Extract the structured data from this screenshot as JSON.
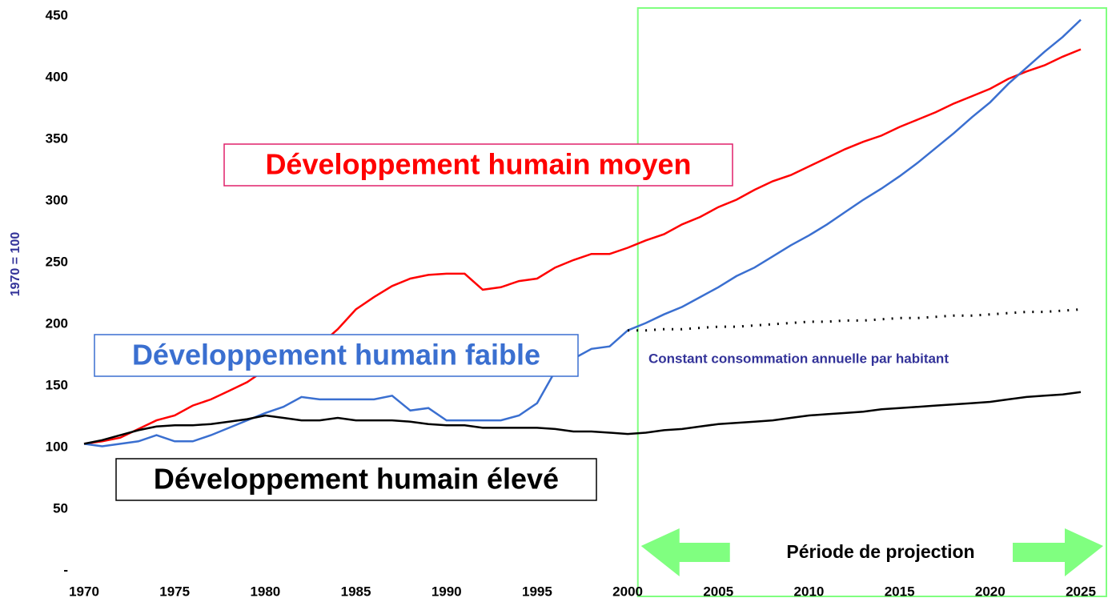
{
  "chart_data": {
    "type": "line",
    "y_label": "1970 = 100",
    "x": [
      1970,
      1971,
      1972,
      1973,
      1974,
      1975,
      1976,
      1977,
      1978,
      1979,
      1980,
      1981,
      1982,
      1983,
      1984,
      1985,
      1986,
      1987,
      1988,
      1989,
      1990,
      1991,
      1992,
      1993,
      1994,
      1995,
      1996,
      1997,
      1998,
      1999,
      2000,
      2001,
      2002,
      2003,
      2004,
      2005,
      2006,
      2007,
      2008,
      2009,
      2010,
      2011,
      2012,
      2013,
      2014,
      2015,
      2016,
      2017,
      2018,
      2019,
      2020,
      2021,
      2022,
      2023,
      2024,
      2025
    ],
    "series": [
      {
        "name": "Développement humain moyen",
        "color": "#ff0000",
        "style": "solid",
        "values": [
          103,
          105,
          108,
          115,
          122,
          126,
          134,
          139,
          146,
          153,
          163,
          172,
          181,
          183,
          196,
          212,
          222,
          231,
          237,
          240,
          241,
          241,
          228,
          230,
          235,
          237,
          246,
          252,
          257,
          257,
          262,
          268,
          273,
          281,
          287,
          295,
          301,
          309,
          316,
          321,
          328,
          335,
          342,
          348,
          353,
          360,
          366,
          372,
          379,
          385,
          391,
          399,
          405,
          410,
          417,
          423
        ]
      },
      {
        "name": "Développement humain faible",
        "color": "#3a6fd0",
        "style": "solid",
        "values": [
          103,
          101,
          103,
          105,
          110,
          105,
          105,
          110,
          116,
          122,
          128,
          133,
          141,
          139,
          139,
          139,
          139,
          142,
          130,
          132,
          122,
          122,
          122,
          122,
          126,
          136,
          162,
          172,
          180,
          182,
          195,
          201,
          208,
          214,
          222,
          230,
          239,
          246,
          255,
          264,
          272,
          281,
          291,
          301,
          310,
          320,
          331,
          343,
          355,
          368,
          380,
          395,
          408,
          421,
          433,
          447
        ]
      },
      {
        "name": "Développement humain élevé",
        "color": "#000000",
        "style": "solid",
        "values": [
          103,
          106,
          110,
          114,
          117,
          118,
          118,
          119,
          121,
          123,
          126,
          124,
          122,
          122,
          124,
          122,
          122,
          122,
          121,
          119,
          118,
          118,
          116,
          116,
          116,
          116,
          115,
          113,
          113,
          112,
          111,
          112,
          114,
          115,
          117,
          119,
          120,
          121,
          122,
          124,
          126,
          127,
          128,
          129,
          131,
          132,
          133,
          134,
          135,
          136,
          137,
          139,
          141,
          142,
          143,
          145
        ]
      },
      {
        "name": "Constant consommation annuelle par habitant",
        "color": "#000000",
        "style": "dotted",
        "label_color": "#333399",
        "values": [
          null,
          null,
          null,
          null,
          null,
          null,
          null,
          null,
          null,
          null,
          null,
          null,
          null,
          null,
          null,
          null,
          null,
          null,
          null,
          null,
          null,
          null,
          null,
          null,
          null,
          null,
          null,
          null,
          null,
          null,
          195,
          195,
          196,
          196,
          197,
          198,
          198,
          199,
          200,
          201,
          202,
          202,
          203,
          203,
          204,
          205,
          205,
          206,
          207,
          207,
          208,
          209,
          210,
          210,
          211,
          212
        ]
      }
    ],
    "projection": {
      "label": "Période de projection",
      "start": 2001,
      "color": "#80ff80"
    },
    "xlim": [
      1970,
      2025
    ],
    "xticks": [
      1970,
      1975,
      1980,
      1985,
      1990,
      1995,
      2000,
      2005,
      2010,
      2015,
      2020,
      2025
    ],
    "ylim": [
      0,
      450
    ],
    "yticks": [
      {
        "value": 0,
        "label": "-"
      },
      50,
      100,
      150,
      200,
      250,
      300,
      350,
      400,
      450
    ],
    "grid": false
  }
}
